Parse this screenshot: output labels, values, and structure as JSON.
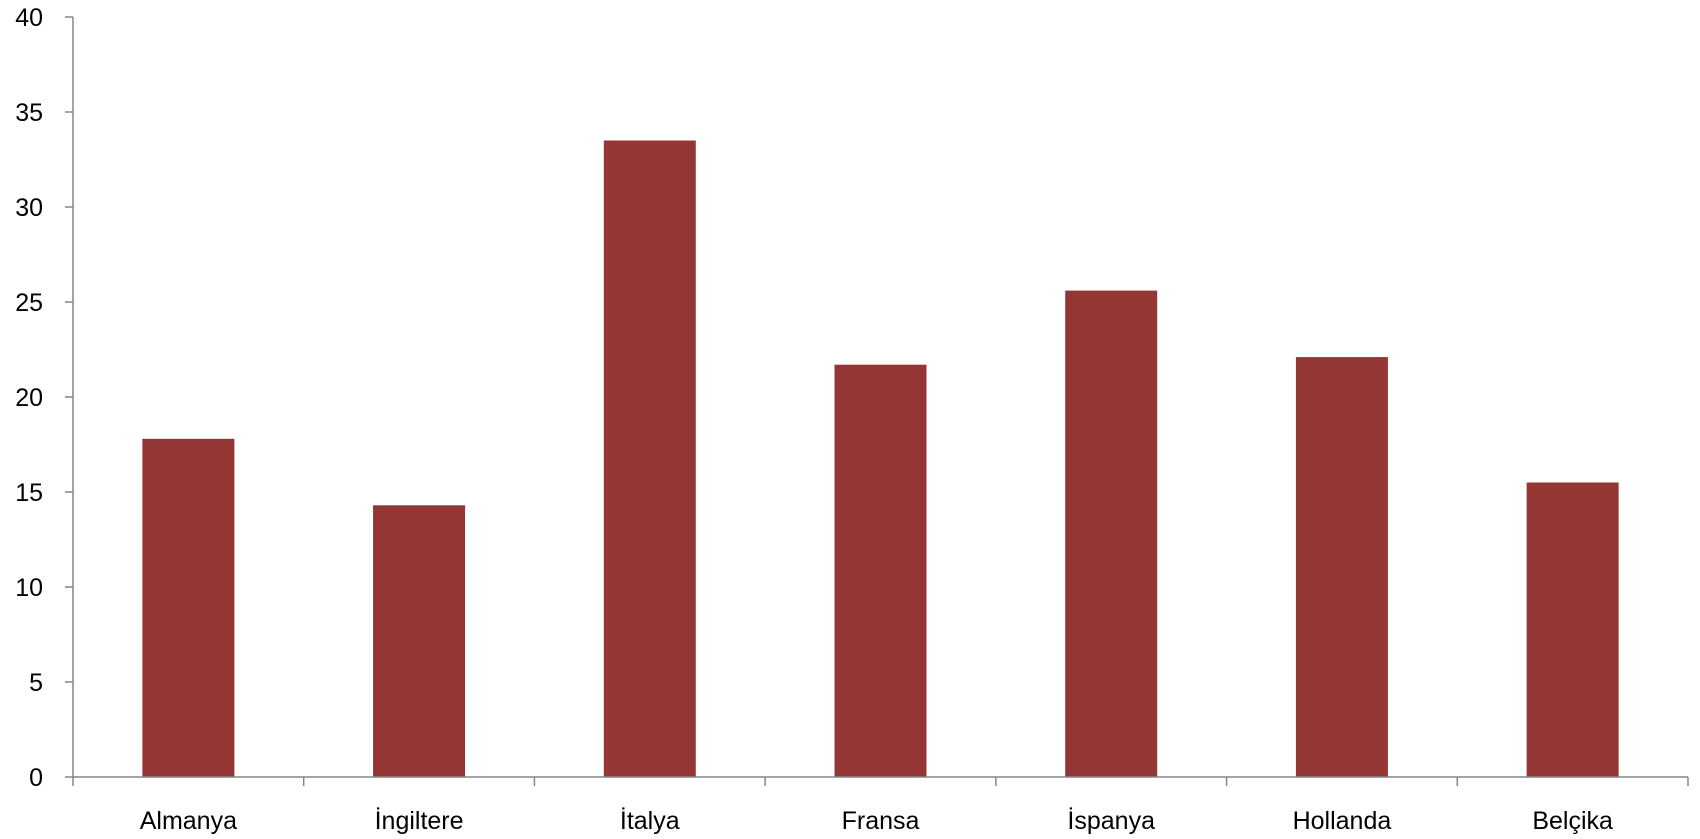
{
  "chart_data": {
    "type": "bar",
    "title": "",
    "xlabel": "",
    "ylabel": "",
    "categories": [
      "Almanya",
      "İngiltere",
      "İtalya",
      "Fransa",
      "İspanya",
      "Hollanda",
      "Belçika"
    ],
    "values": [
      17.8,
      14.3,
      33.5,
      21.7,
      25.6,
      22.1,
      15.5
    ],
    "ylim": [
      0,
      40
    ],
    "yticks": [
      "0",
      "5",
      "10",
      "15",
      "20",
      "25",
      "30",
      "35",
      "40"
    ],
    "grid": false,
    "legend": "none",
    "bar_color": "#943634",
    "axis_color": "#868686"
  }
}
